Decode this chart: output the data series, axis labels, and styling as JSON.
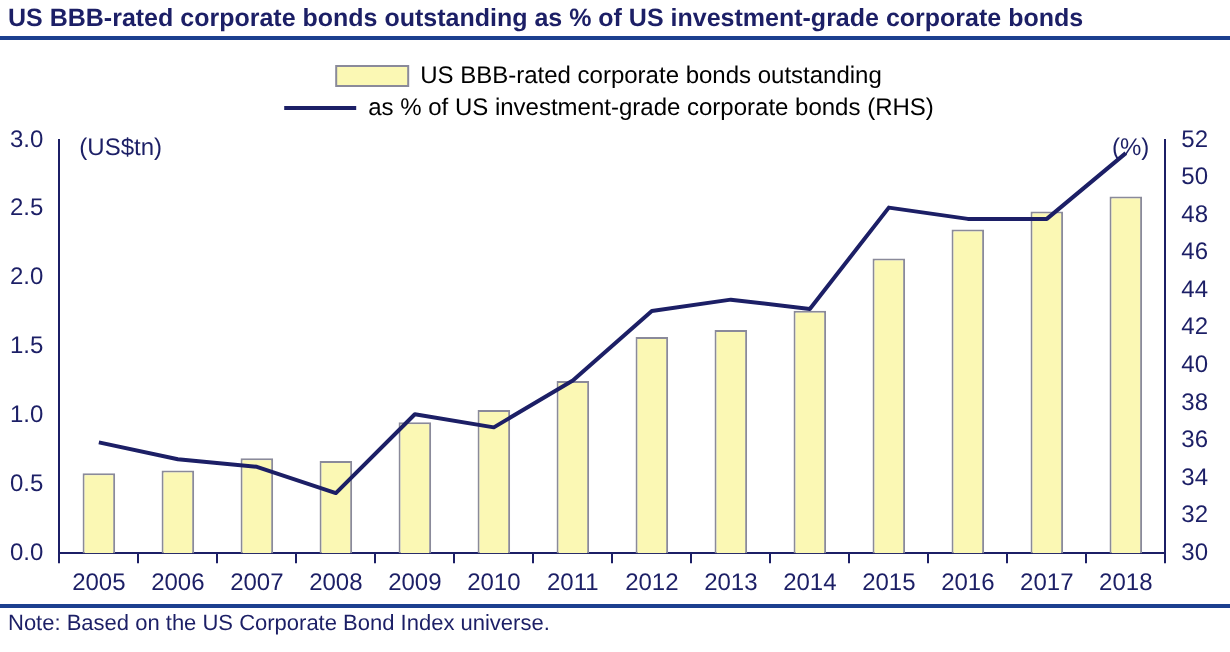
{
  "chart_data": {
    "type": "bar",
    "title": "US BBB-rated corporate bonds outstanding as % of US investment-grade corporate bonds",
    "categories": [
      "2005",
      "2006",
      "2007",
      "2008",
      "2009",
      "2010",
      "2011",
      "2012",
      "2013",
      "2014",
      "2015",
      "2016",
      "2017",
      "2018"
    ],
    "series": [
      {
        "name": "US BBB-rated corporate bonds outstanding",
        "color": "#fbf8b4",
        "values": [
          0.58,
          0.6,
          0.69,
          0.67,
          0.95,
          1.04,
          1.25,
          1.57,
          1.62,
          1.76,
          2.14,
          2.35,
          2.48,
          2.59
        ]
      },
      {
        "name": "as % of US investment-grade corporate bonds (RHS)",
        "type": "line",
        "axis": "y2",
        "color": "#1c1f66",
        "values": [
          35.9,
          35.0,
          34.6,
          33.2,
          37.4,
          36.7,
          39.2,
          42.9,
          43.5,
          43.0,
          48.4,
          47.8,
          47.8,
          51.3
        ]
      }
    ],
    "ylabel": "(US$tn)",
    "y2label": "(%)",
    "ylim": [
      0,
      3
    ],
    "yticks": [
      {
        "value": 0,
        "label": "0.0"
      },
      0.5,
      {
        "value": 1,
        "label": "1.0"
      },
      1.5,
      {
        "value": 2,
        "label": "2.0"
      },
      2.5,
      {
        "value": 3,
        "label": "3.0"
      }
    ],
    "y2lim": [
      30,
      52
    ],
    "y2ticks": [
      30,
      32,
      34,
      36,
      38,
      40,
      42,
      44,
      46,
      48,
      50,
      52
    ],
    "legend": "top",
    "grid": false,
    "marker": "none",
    "annotations": [
      "Note: Based on the US Corporate Bond Index universe."
    ]
  }
}
